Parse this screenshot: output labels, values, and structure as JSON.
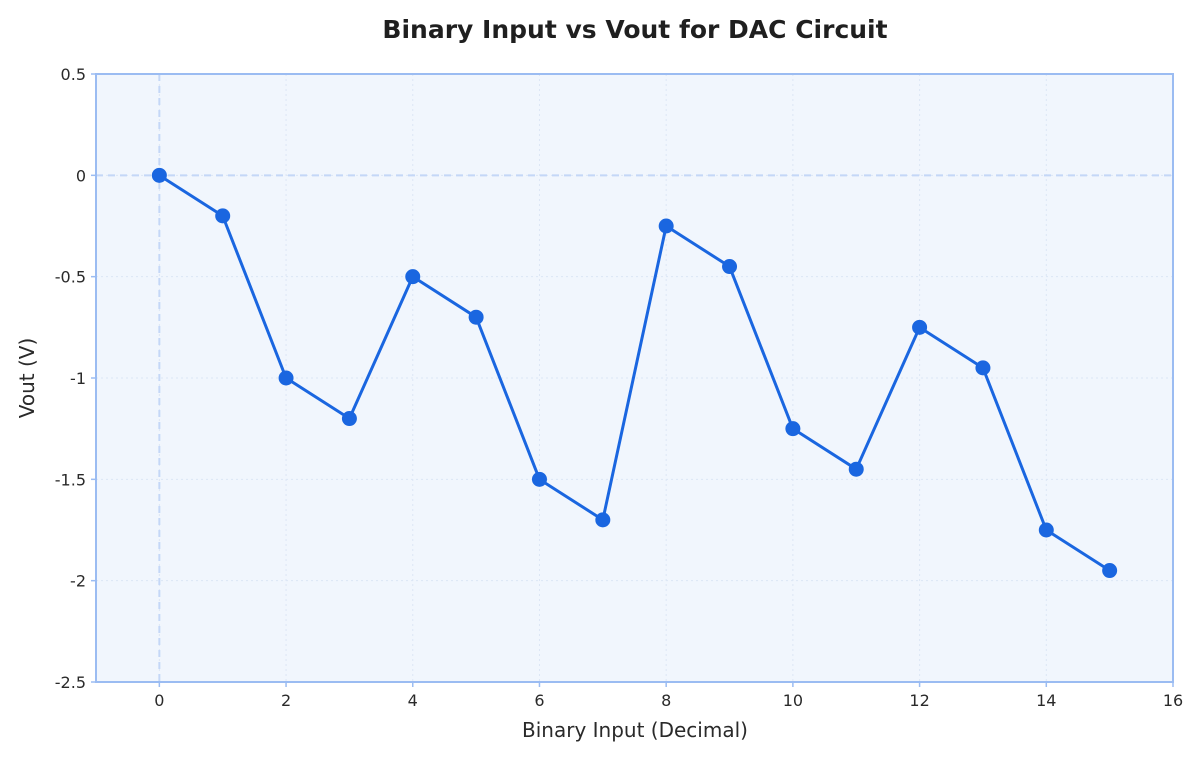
{
  "chart_data": {
    "type": "line",
    "title": "Binary Input vs Vout for DAC Circuit",
    "xlabel": "Binary Input (Decimal)",
    "ylabel": "Vout (V)",
    "xlim": [
      -1,
      16
    ],
    "ylim": [
      -2.5,
      0.5
    ],
    "x_ticks": [
      0,
      2,
      4,
      6,
      8,
      10,
      12,
      14,
      16
    ],
    "y_ticks": [
      0.5,
      0,
      -0.5,
      -1,
      -1.5,
      -2,
      -2.5
    ],
    "grid": true,
    "reference_lines": {
      "x": 0,
      "y": 0
    },
    "x": [
      0,
      1,
      2,
      3,
      4,
      5,
      6,
      7,
      8,
      9,
      10,
      11,
      12,
      13,
      14,
      15
    ],
    "series": [
      {
        "values": [
          0,
          -0.2,
          -1.0,
          -1.2,
          -0.5,
          -0.7,
          -1.5,
          -1.7,
          -0.25,
          -0.45,
          -1.25,
          -1.45,
          -0.75,
          -0.95,
          -1.75,
          -1.95
        ],
        "color": "#1a66e0"
      }
    ],
    "colors": {
      "plot_background": "#f1f6fd",
      "plot_border": "#9bbcf2",
      "grid": "#dce6f5",
      "reference_line": "#c4d7f7"
    }
  }
}
